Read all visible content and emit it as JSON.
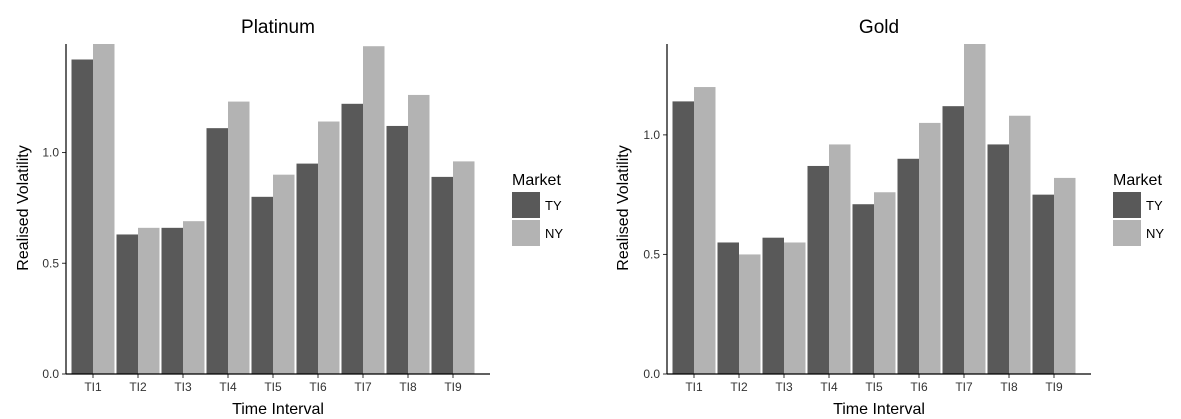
{
  "colors": {
    "TY": "#595959",
    "NY": "#b3b3b3"
  },
  "chart_data": [
    {
      "type": "bar",
      "title": "Platinum",
      "xlabel": "Time Interval",
      "ylabel": "Realised Volatility",
      "categories": [
        "TI1",
        "TI2",
        "TI3",
        "TI4",
        "TI5",
        "TI6",
        "TI7",
        "TI8",
        "TI9"
      ],
      "series": [
        {
          "name": "TY",
          "values": [
            1.42,
            0.63,
            0.66,
            1.11,
            0.8,
            0.95,
            1.22,
            1.12,
            0.89
          ]
        },
        {
          "name": "NY",
          "values": [
            1.49,
            0.66,
            0.69,
            1.23,
            0.9,
            1.14,
            1.48,
            1.26,
            0.96
          ]
        }
      ],
      "ylim": [
        0,
        1.49
      ],
      "yticks": [
        0.0,
        0.5,
        1.0
      ],
      "ytick_labels": [
        "0.0",
        "0.5",
        "1.0"
      ],
      "grid": false,
      "legend": {
        "title": "Market",
        "placement": "right",
        "entries": [
          "TY",
          "NY"
        ]
      }
    },
    {
      "type": "bar",
      "title": "Gold",
      "xlabel": "Time Interval",
      "ylabel": "Realised Volatility",
      "categories": [
        "TI1",
        "TI2",
        "TI3",
        "TI4",
        "TI5",
        "TI6",
        "TI7",
        "TI8",
        "TI9"
      ],
      "series": [
        {
          "name": "TY",
          "values": [
            1.14,
            0.55,
            0.57,
            0.87,
            0.71,
            0.9,
            1.12,
            0.96,
            0.75
          ]
        },
        {
          "name": "NY",
          "values": [
            1.2,
            0.5,
            0.55,
            0.96,
            0.76,
            1.05,
            1.38,
            1.08,
            0.82
          ]
        }
      ],
      "ylim": [
        0,
        1.38
      ],
      "yticks": [
        0.0,
        0.5,
        1.0
      ],
      "ytick_labels": [
        "0.0",
        "0.5",
        "1.0"
      ],
      "grid": false,
      "legend": {
        "title": "Market",
        "placement": "right",
        "entries": [
          "TY",
          "NY"
        ]
      }
    }
  ]
}
